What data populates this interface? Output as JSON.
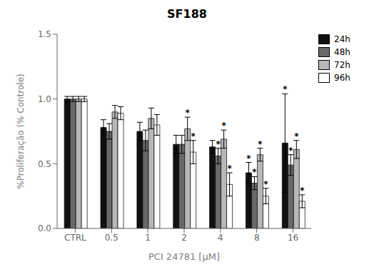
{
  "chart_data": {
    "type": "bar",
    "title": "SF188",
    "x_label": "PCI 24781 [μM]",
    "y_label": "%Proliferação (% Controle)",
    "categories": [
      "CTRL",
      "0.5",
      "1",
      "2",
      "4",
      "8",
      "16"
    ],
    "series": [
      {
        "name": "24h",
        "color": "#111111",
        "values": [
          1.0,
          0.78,
          0.75,
          0.65,
          0.63,
          0.43,
          0.66
        ],
        "errors": [
          0.02,
          0.06,
          0.07,
          0.07,
          0.05,
          0.08,
          0.38
        ]
      },
      {
        "name": "48h",
        "color": "#696969",
        "values": [
          1.0,
          0.75,
          0.68,
          0.65,
          0.56,
          0.35,
          0.49
        ],
        "errors": [
          0.02,
          0.06,
          0.08,
          0.07,
          0.06,
          0.05,
          0.08
        ]
      },
      {
        "name": "72h",
        "color": "#b8b8b8",
        "values": [
          1.0,
          0.9,
          0.85,
          0.77,
          0.69,
          0.57,
          0.61
        ],
        "errors": [
          0.02,
          0.05,
          0.08,
          0.09,
          0.07,
          0.05,
          0.07
        ]
      },
      {
        "name": "96h",
        "color": "#ffffff",
        "values": [
          1.0,
          0.89,
          0.8,
          0.59,
          0.34,
          0.25,
          0.21
        ],
        "errors": [
          0.02,
          0.05,
          0.08,
          0.09,
          0.09,
          0.06,
          0.05
        ]
      }
    ],
    "annotations": [
      {
        "category": "2",
        "series": "72h",
        "text": "*"
      },
      {
        "category": "2",
        "series": "96h",
        "text": "*"
      },
      {
        "category": "4",
        "series": "48h",
        "text": "*"
      },
      {
        "category": "4",
        "series": "72h",
        "text": "*"
      },
      {
        "category": "4",
        "series": "96h",
        "text": "*"
      },
      {
        "category": "8",
        "series": "24h",
        "text": "*"
      },
      {
        "category": "8",
        "series": "48h",
        "text": "*"
      },
      {
        "category": "8",
        "series": "72h",
        "text": "*"
      },
      {
        "category": "8",
        "series": "96h",
        "text": "*"
      },
      {
        "category": "16",
        "series": "24h",
        "text": "*"
      },
      {
        "category": "16",
        "series": "48h",
        "text": "*"
      },
      {
        "category": "16",
        "series": "72h",
        "text": "*"
      },
      {
        "category": "16",
        "series": "96h",
        "text": "*"
      }
    ],
    "ylim": [
      0.0,
      1.5
    ],
    "yticks": [
      {
        "value": 0.0,
        "label": "0.0"
      },
      0.5,
      {
        "value": 1.0,
        "label": "1.0"
      },
      1.5
    ],
    "grid": false,
    "legend": "upper right"
  }
}
